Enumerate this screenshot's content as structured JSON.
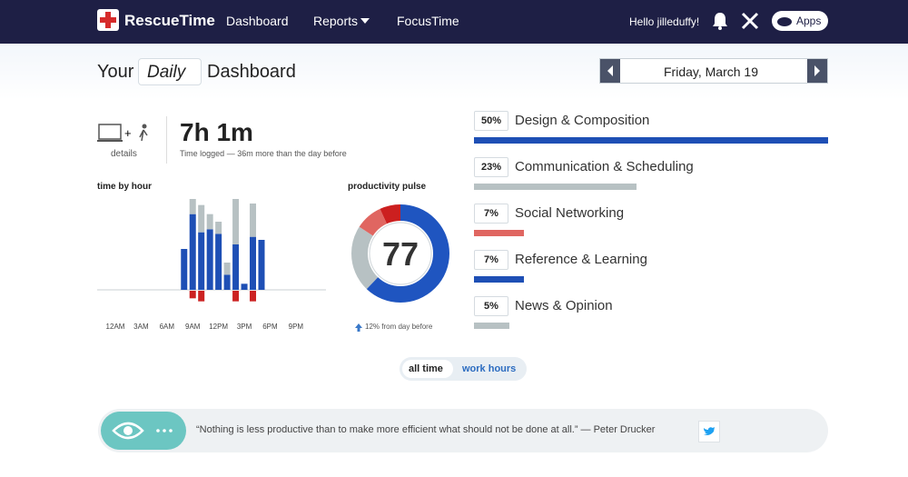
{
  "nav": {
    "brand": "RescueTime",
    "links": [
      "Dashboard",
      "Reports",
      "FocusTime"
    ],
    "greeting": "Hello jilleduffy!",
    "apps": "Apps"
  },
  "header": {
    "prefix": "Your",
    "period": "Daily",
    "suffix": "Dashboard",
    "date": "Friday, March 19"
  },
  "summary": {
    "details": "details",
    "total": "7h 1m",
    "note": "Time logged — 36m more than the day before"
  },
  "time_by_hour": {
    "title": "time by hour",
    "x_labels": [
      "12AM",
      "3AM",
      "6AM",
      "9AM",
      "12PM",
      "3PM",
      "6PM",
      "9PM"
    ],
    "hours": [
      8,
      9,
      10,
      11,
      12,
      13,
      14,
      15,
      16,
      17
    ],
    "productive": [
      27,
      50,
      38,
      40,
      37,
      10,
      30,
      4,
      35,
      33
    ],
    "neutral": [
      0,
      10,
      18,
      10,
      8,
      8,
      30,
      0,
      22,
      0
    ],
    "distracting": [
      0,
      5,
      7,
      0,
      0,
      0,
      7,
      0,
      7,
      0
    ]
  },
  "pulse": {
    "title": "productivity pulse",
    "score": 77,
    "change": "12% from day before",
    "segments": [
      {
        "value": 62,
        "color": "#1f55c0"
      },
      {
        "value": 22,
        "color": "#b7c1c3"
      },
      {
        "value": 9,
        "color": "#e06661"
      },
      {
        "value": 7,
        "color": "#cc1f1f"
      }
    ]
  },
  "categories": [
    {
      "label": "50%",
      "value": 50,
      "name": "Design & Composition",
      "color": "#1e4fb5"
    },
    {
      "label": "23%",
      "value": 23,
      "name": "Communication & Scheduling",
      "color": "#b7c1c3"
    },
    {
      "label": "7%",
      "value": 7,
      "name": "Social Networking",
      "color": "#e06661"
    },
    {
      "label": "7%",
      "value": 7,
      "name": "Reference & Learning",
      "color": "#1e4fb5"
    },
    {
      "label": "5%",
      "value": 5,
      "name": "News & Opinion",
      "color": "#b7c1c3"
    }
  ],
  "toggle": [
    "all time",
    "work hours"
  ],
  "quote": "“Nothing is less productive than to make more efficient what should not be done at all.” — Peter Drucker"
}
